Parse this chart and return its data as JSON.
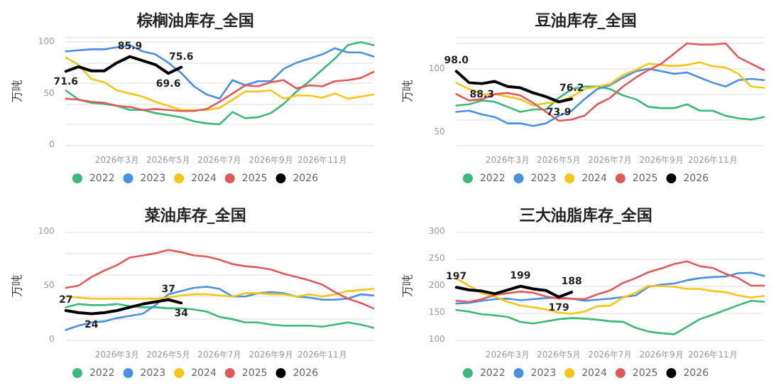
{
  "chart_data": [
    {
      "type": "line",
      "title": "棕榈油库存_全国",
      "ylabel": "万吨",
      "categories": [
        null,
        null,
        null,
        null,
        "2026年3月",
        null,
        null,
        null,
        "2026年5月",
        null,
        null,
        null,
        "2026年7月",
        null,
        null,
        null,
        "2026年9月",
        null,
        null,
        null,
        "2026年11月",
        null,
        null,
        null,
        null
      ],
      "ylim": [
        0,
        105
      ],
      "yticks": [
        0,
        50,
        100
      ],
      "grid": "y",
      "legend": "bottom",
      "marker": "none",
      "line_style": "solid",
      "series": [
        {
          "name": "2022",
          "color": "#3cb878",
          "values": [
            53,
            44,
            41,
            40,
            38,
            34,
            34,
            31,
            29,
            27,
            23,
            21,
            20,
            32,
            26,
            27,
            31,
            40,
            52,
            62,
            73,
            84,
            97,
            100,
            97
          ]
        },
        {
          "name": "2023",
          "color": "#4a90e2",
          "values": [
            91,
            92,
            93,
            93,
            95,
            97,
            91,
            88,
            80,
            70,
            57,
            49,
            45,
            63,
            58,
            62,
            62,
            74,
            80,
            84,
            88,
            94,
            90,
            90,
            86
          ]
        },
        {
          "name": "2024",
          "color": "#f5c518",
          "values": [
            85,
            78,
            64,
            61,
            53,
            50,
            47,
            42,
            38,
            34,
            34,
            34,
            36,
            44,
            52,
            52,
            53,
            45,
            48,
            48,
            46,
            50,
            45,
            47,
            49
          ]
        },
        {
          "name": "2025",
          "color": "#e05a5a",
          "values": [
            45,
            44,
            42,
            41,
            38,
            37,
            34,
            35,
            34,
            33,
            33,
            35,
            42,
            50,
            58,
            57,
            61,
            63,
            55,
            58,
            57,
            62,
            63,
            65,
            71
          ]
        },
        {
          "name": "2026",
          "color": "#000000",
          "values": [
            71.6,
            76,
            72,
            72,
            80,
            85.9,
            82,
            78,
            69.6,
            75.6,
            null,
            null,
            null,
            null,
            null,
            null,
            null,
            null,
            null,
            null,
            null,
            null,
            null,
            null,
            null
          ],
          "value_labels": [
            "71.6",
            null,
            null,
            null,
            null,
            "85.9",
            null,
            null,
            "69.6",
            "75.6",
            null,
            null,
            null,
            null,
            null,
            null,
            null,
            null,
            null,
            null,
            null,
            null,
            null,
            null,
            null
          ]
        }
      ]
    },
    {
      "type": "line",
      "title": "豆油库存_全国",
      "ylabel": "万吨",
      "categories": [
        null,
        null,
        null,
        null,
        "2026年3月",
        null,
        null,
        null,
        "2026年5月",
        null,
        null,
        null,
        "2026年7月",
        null,
        null,
        null,
        "2026年9月",
        null,
        null,
        null,
        "2026年11月",
        null,
        null,
        null,
        null
      ],
      "ylim": [
        40,
        125
      ],
      "yticks": [
        50,
        100
      ],
      "grid": "y",
      "legend": "bottom",
      "marker": "none",
      "line_style": "solid",
      "series": [
        {
          "name": "2022",
          "color": "#3cb878",
          "values": [
            71,
            72,
            75,
            74,
            70,
            66,
            68,
            68,
            77,
            84,
            86,
            86,
            84,
            79,
            76,
            70,
            69,
            69,
            72,
            67,
            67,
            63,
            61,
            60,
            62
          ]
        },
        {
          "name": "2023",
          "color": "#4a90e2",
          "values": [
            66,
            67,
            64,
            62,
            57,
            57,
            55,
            57,
            63,
            67,
            76,
            84,
            87,
            93,
            98,
            100,
            98,
            96,
            97,
            93,
            89,
            86,
            91,
            92,
            91
          ]
        },
        {
          "name": "2024",
          "color": "#f5c518",
          "values": [
            89,
            84,
            80,
            80,
            78,
            76,
            71,
            73,
            74,
            78,
            84,
            86,
            88,
            95,
            99,
            104,
            103,
            102,
            103,
            105,
            102,
            101,
            96,
            86,
            85
          ]
        },
        {
          "name": "2025",
          "color": "#e05a5a",
          "values": [
            80,
            75,
            76,
            80,
            81,
            79,
            73,
            66,
            59,
            60,
            63,
            72,
            77,
            86,
            93,
            99,
            104,
            112,
            120,
            119,
            119,
            120,
            109,
            104,
            99
          ]
        },
        {
          "name": "2026",
          "color": "#000000",
          "values": [
            98.0,
            89,
            88.3,
            90,
            86,
            85,
            81,
            78,
            73.9,
            76.2,
            null,
            null,
            null,
            null,
            null,
            null,
            null,
            null,
            null,
            null,
            null,
            null,
            null,
            null,
            null
          ],
          "value_labels": [
            "98.0",
            null,
            "88.3",
            null,
            null,
            null,
            null,
            null,
            "73.9",
            "76.2",
            null,
            null,
            null,
            null,
            null,
            null,
            null,
            null,
            null,
            null,
            null,
            null,
            null,
            null,
            null
          ]
        }
      ]
    },
    {
      "type": "line",
      "title": "菜油库存_全国",
      "ylabel": "万吨",
      "categories": [
        null,
        null,
        null,
        null,
        "2026年3月",
        null,
        null,
        null,
        "2026年5月",
        null,
        null,
        null,
        "2026年7月",
        null,
        null,
        null,
        "2026年9月",
        null,
        null,
        null,
        "2026年11月",
        null,
        null,
        null,
        null
      ],
      "ylim": [
        0,
        100
      ],
      "yticks": [
        0,
        50,
        100
      ],
      "grid": "y",
      "legend": "bottom",
      "marker": "none",
      "line_style": "solid",
      "series": [
        {
          "name": "2022",
          "color": "#3cb878",
          "values": [
            30,
            33,
            32,
            32,
            33,
            31,
            30,
            30,
            29,
            29,
            28,
            26,
            21,
            19,
            16,
            16,
            14,
            13,
            13,
            13,
            12,
            14,
            16,
            14,
            11
          ]
        },
        {
          "name": "2023",
          "color": "#4a90e2",
          "values": [
            9,
            13,
            16,
            17,
            20,
            22,
            24,
            32,
            42,
            45,
            48,
            49,
            47,
            40,
            40,
            43,
            44,
            43,
            40,
            39,
            37,
            37,
            38,
            42,
            41
          ]
        },
        {
          "name": "2024",
          "color": "#f5c518",
          "values": [
            40,
            39,
            38,
            38,
            38,
            38,
            38,
            38,
            39,
            41,
            42,
            42,
            41,
            40,
            43,
            43,
            42,
            42,
            40,
            42,
            40,
            42,
            45,
            46,
            47
          ]
        },
        {
          "name": "2025",
          "color": "#e05a5a",
          "values": [
            48,
            50,
            58,
            64,
            69,
            76,
            78,
            80,
            83,
            81,
            78,
            77,
            74,
            70,
            68,
            67,
            65,
            61,
            58,
            55,
            51,
            44,
            38,
            34,
            29
          ]
        },
        {
          "name": "2026",
          "color": "#000000",
          "values": [
            27,
            25,
            24,
            25,
            27,
            30,
            33,
            35,
            37,
            34,
            null,
            null,
            null,
            null,
            null,
            null,
            null,
            null,
            null,
            null,
            null,
            null,
            null,
            null,
            null
          ],
          "value_labels": [
            "27",
            null,
            "24",
            null,
            null,
            null,
            null,
            null,
            "37",
            "34",
            null,
            null,
            null,
            null,
            null,
            null,
            null,
            null,
            null,
            null,
            null,
            null,
            null,
            null,
            null
          ]
        }
      ]
    },
    {
      "type": "line",
      "title": "三大油脂库存_全国",
      "ylabel": "万吨",
      "categories": [
        null,
        null,
        null,
        null,
        "2026年3月",
        null,
        null,
        null,
        "2026年5月",
        null,
        null,
        null,
        "2026年7月",
        null,
        null,
        null,
        "2026年9月",
        null,
        null,
        null,
        "2026年11月",
        null,
        null,
        null,
        null
      ],
      "ylim": [
        100,
        300
      ],
      "yticks": [
        100,
        150,
        200,
        250,
        300
      ],
      "grid": "y",
      "legend": "bottom",
      "marker": "none",
      "line_style": "solid",
      "series": [
        {
          "name": "2022",
          "color": "#3cb878",
          "values": [
            155,
            152,
            147,
            145,
            142,
            133,
            130,
            134,
            138,
            140,
            139,
            137,
            134,
            133,
            122,
            115,
            112,
            110,
            124,
            138,
            146,
            155,
            164,
            172,
            170
          ]
        },
        {
          "name": "2023",
          "color": "#4a90e2",
          "values": [
            167,
            168,
            172,
            175,
            176,
            173,
            175,
            177,
            178,
            176,
            172,
            174,
            176,
            179,
            182,
            198,
            202,
            204,
            210,
            214,
            216,
            217,
            223,
            224,
            218
          ]
        },
        {
          "name": "2024",
          "color": "#f5c518",
          "values": [
            213,
            200,
            186,
            180,
            170,
            163,
            160,
            156,
            150,
            148,
            152,
            162,
            163,
            178,
            187,
            200,
            199,
            198,
            194,
            194,
            190,
            188,
            182,
            178,
            181
          ]
        },
        {
          "name": "2025",
          "color": "#e05a5a",
          "values": [
            172,
            170,
            175,
            183,
            186,
            189,
            187,
            180,
            176,
            176,
            175,
            184,
            191,
            205,
            214,
            225,
            232,
            240,
            245,
            236,
            233,
            222,
            214,
            200,
            200
          ]
        },
        {
          "name": "2026",
          "color": "#000000",
          "values": [
            197,
            192,
            190,
            185,
            192,
            199,
            194,
            191,
            179,
            188,
            null,
            null,
            null,
            null,
            null,
            null,
            null,
            null,
            null,
            null,
            null,
            null,
            null,
            null,
            null
          ],
          "value_labels": [
            "197",
            null,
            null,
            null,
            null,
            "199",
            null,
            null,
            "179",
            "188",
            null,
            null,
            null,
            null,
            null,
            null,
            null,
            null,
            null,
            null,
            null,
            null,
            null,
            null,
            null
          ]
        }
      ]
    }
  ]
}
